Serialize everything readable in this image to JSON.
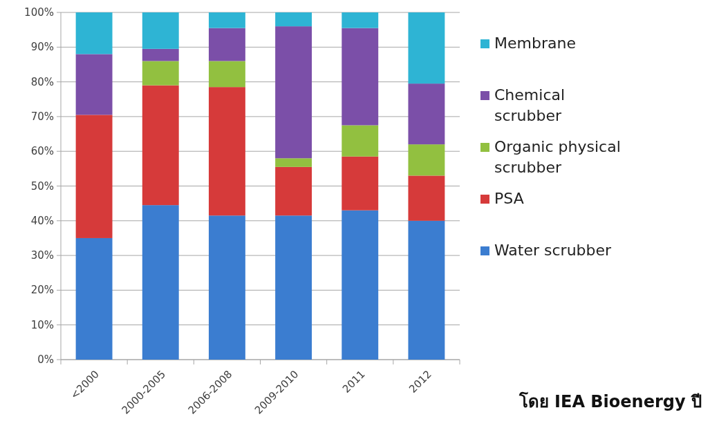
{
  "chart_data": {
    "type": "bar",
    "stacked": true,
    "categories": [
      "<2000",
      "2000-2005",
      "2006-2008",
      "2009-2010",
      "2011",
      "2012"
    ],
    "series": [
      {
        "name": "Water scrubber",
        "color": "#3b7dd0",
        "values": [
          35,
          44.5,
          41.5,
          41.5,
          43,
          40
        ]
      },
      {
        "name": "PSA",
        "color": "#d63a3a",
        "values": [
          35.5,
          34.5,
          37,
          14,
          15.5,
          13
        ]
      },
      {
        "name": "Organic physical scrubber",
        "color": "#92c040",
        "values": [
          0,
          7,
          7.5,
          2.5,
          9,
          9
        ]
      },
      {
        "name": "Chemical scrubber",
        "color": "#7b4fa8",
        "values": [
          17.5,
          3.5,
          9.5,
          38,
          28,
          17.5
        ]
      },
      {
        "name": "Membrane",
        "color": "#2eb4d4",
        "values": [
          12,
          10.5,
          4.5,
          4,
          4.5,
          20.5
        ]
      }
    ],
    "ylim": [
      0,
      100
    ],
    "yticks": [
      {
        "value": 0,
        "label": "0%"
      },
      {
        "value": 10,
        "label": "10%"
      },
      {
        "value": 20,
        "label": "20%"
      },
      {
        "value": 30,
        "label": "30%"
      },
      {
        "value": 40,
        "label": "40%"
      },
      {
        "value": 50,
        "label": "50%"
      },
      {
        "value": 60,
        "label": "60%"
      },
      {
        "value": 70,
        "label": "70%"
      },
      {
        "value": 80,
        "label": "80%"
      },
      {
        "value": 90,
        "label": "90%"
      },
      {
        "value": 100,
        "label": "100%"
      }
    ],
    "grid": "y",
    "legend": "right",
    "annotations": [
      "โดย IEA Bioenergy ปี"
    ]
  }
}
